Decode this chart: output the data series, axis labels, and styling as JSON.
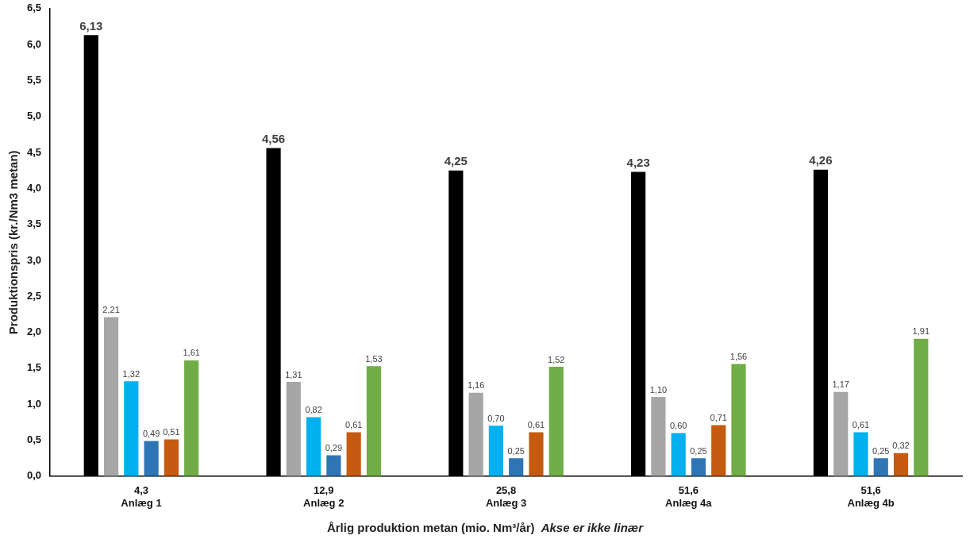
{
  "chart_data": {
    "type": "bar",
    "ylabel": "Produktionspris (kr./Nm3 metan)",
    "xlabel": "Årlig produktion metan (mio. Nm³/år)",
    "annotations": [
      "Akse er ikke linær"
    ],
    "categories": [
      "4,3\nAnlæg 1",
      "12,9\nAnlæg 2",
      "25,8\nAnlæg 3",
      "51,6\nAnlæg 4a",
      "51,6\nAnlæg 4b"
    ],
    "series": [
      {
        "color": "#000000",
        "values": [
          6.13,
          4.56,
          4.25,
          4.23,
          4.26
        ],
        "value_labels": [
          "6,13",
          "4,56",
          "4,25",
          "4,23",
          "4,26"
        ]
      },
      {
        "color": "#a6a6a6",
        "values": [
          2.21,
          1.31,
          1.16,
          1.1,
          1.17
        ],
        "value_labels": [
          "2,21",
          "1,31",
          "1,16",
          "1,10",
          "1,17"
        ]
      },
      {
        "color": "#00b0f0",
        "values": [
          1.32,
          0.82,
          0.7,
          0.6,
          0.61
        ],
        "value_labels": [
          "1,32",
          "0,82",
          "0,70",
          "0,60",
          "0,61"
        ]
      },
      {
        "color": "#2e75b6",
        "values": [
          0.49,
          0.29,
          0.25,
          0.25,
          0.25
        ],
        "value_labels": [
          "0,49",
          "0,29",
          "0,25",
          "0,25",
          "0,25"
        ]
      },
      {
        "color": "#c55a11",
        "values": [
          0.51,
          0.61,
          0.61,
          0.71,
          0.32
        ],
        "value_labels": [
          "0,51",
          "0,61",
          "0,61",
          "0,71",
          "0,32"
        ]
      },
      {
        "color": "#70ad47",
        "values": [
          1.61,
          1.53,
          1.52,
          1.56,
          1.91
        ],
        "value_labels": [
          "1,61",
          "1,53",
          "1,52",
          "1,56",
          "1,91"
        ]
      }
    ],
    "ylim": [
      0,
      6.5
    ],
    "yticks": [
      {
        "value": 0,
        "label": "0,0"
      },
      {
        "value": 0.5,
        "label": "0,5"
      },
      {
        "value": 1,
        "label": "1,0"
      },
      {
        "value": 1.5,
        "label": "1,5"
      },
      {
        "value": 2,
        "label": "2,0"
      },
      {
        "value": 2.5,
        "label": "2,5"
      },
      {
        "value": 3,
        "label": "3,0"
      },
      {
        "value": 3.5,
        "label": "3,5"
      },
      {
        "value": 4,
        "label": "4,0"
      },
      {
        "value": 4.5,
        "label": "4,5"
      },
      {
        "value": 5,
        "label": "5,0"
      },
      {
        "value": 5.5,
        "label": "5,5"
      },
      {
        "value": 6,
        "label": "6,0"
      },
      {
        "value": 6.5,
        "label": "6,5"
      }
    ],
    "grid": false,
    "legend": false
  }
}
